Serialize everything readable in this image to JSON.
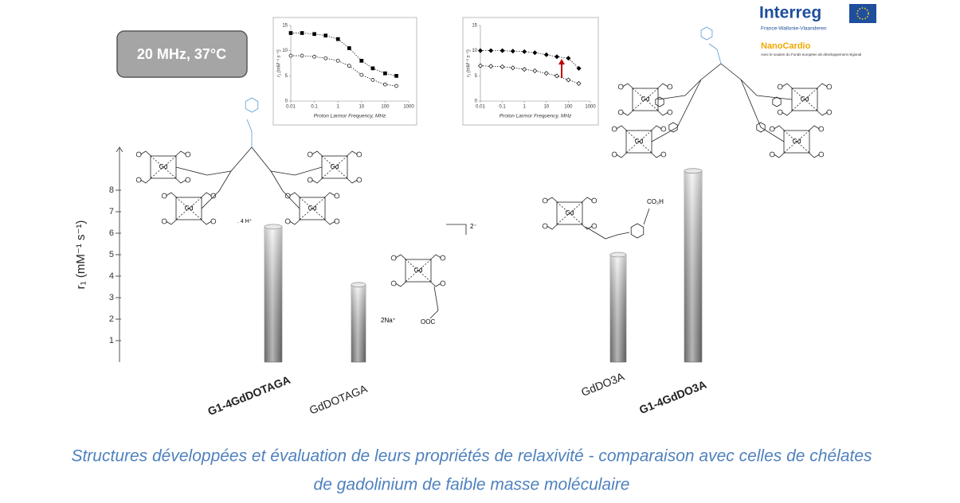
{
  "header": {
    "box_label": "20 MHz, 37°C",
    "logo": {
      "title": "Interreg",
      "subtitle": "France-Wallonie-Vlaanderen",
      "project": "NanoCardio",
      "support": "Avec le soutien du Fonds européen de développement régional"
    }
  },
  "chart_data": [
    {
      "type": "bar",
      "y_label": "r₁ (mM⁻¹ s⁻¹)",
      "categories": [
        "G1-4GdDOTAGA",
        "GdDOTAGA",
        "GdDO3A",
        "G1-4GdDO3A"
      ],
      "values": [
        6.3,
        3.6,
        5.0,
        8.9
      ],
      "color": "#9a9a9a",
      "ylim": [
        0,
        10
      ],
      "yticks": [
        1,
        2,
        3,
        4,
        5,
        6,
        7,
        8
      ],
      "grid": false
    },
    {
      "type": "scatter",
      "x_label": "Proton Larmor Frequency, MHz",
      "y_label": "r₁ (mM⁻¹ s⁻¹)",
      "xscale": "log",
      "x": [
        0.01,
        0.03,
        0.1,
        0.3,
        1,
        3,
        10,
        30,
        100,
        300
      ],
      "series": [
        {
          "marker": "filled-square",
          "color": "#000000",
          "values": [
            13.5,
            13.5,
            13.3,
            13,
            12.3,
            10.5,
            8,
            6.5,
            5.5,
            5
          ]
        },
        {
          "marker": "open-circle",
          "color": "#000000",
          "values": [
            9,
            9,
            8.8,
            8.5,
            8,
            7,
            5.2,
            4.2,
            3.3,
            3
          ]
        }
      ],
      "xlim": [
        0.01,
        1000
      ],
      "xticks": [
        0.01,
        0.1,
        1,
        10,
        100,
        1000
      ],
      "ylim": [
        0,
        15
      ],
      "yticks": [
        0,
        5,
        10,
        15
      ]
    },
    {
      "type": "scatter",
      "x_label": "Proton Larmor Frequency, MHz",
      "y_label": "r₁ (mM⁻¹ s⁻¹)",
      "xscale": "log",
      "x": [
        0.01,
        0.03,
        0.1,
        0.3,
        1,
        3,
        10,
        30,
        100,
        300
      ],
      "series": [
        {
          "marker": "filled-diamond",
          "color": "#000000",
          "values": [
            10,
            10,
            10,
            9.9,
            9.8,
            9.6,
            9.2,
            8.8,
            8.5,
            6.5
          ]
        },
        {
          "marker": "open-diamond",
          "color": "#000000",
          "values": [
            7,
            6.9,
            6.8,
            6.6,
            6.3,
            6,
            5.5,
            5,
            4.2,
            3.5
          ]
        }
      ],
      "xlim": [
        0.01,
        1000
      ],
      "xticks": [
        0.01,
        0.1,
        1,
        10,
        100,
        1000
      ],
      "ylim": [
        0,
        15
      ],
      "yticks": [
        0,
        5,
        10,
        15
      ]
    }
  ],
  "structures": {
    "metal": "Gd",
    "counterion_1": ". 4 H⁺",
    "charge": "2⁻",
    "counterion_2": "2Na⁺",
    "acid": "CO₂H",
    "carboxylate": "OOC"
  },
  "caption": [
    "Structures développées et évaluation de leurs propriétés de relaxivité - comparaison avec celles de chélates",
    "de gadolinium de faible masse moléculaire"
  ]
}
